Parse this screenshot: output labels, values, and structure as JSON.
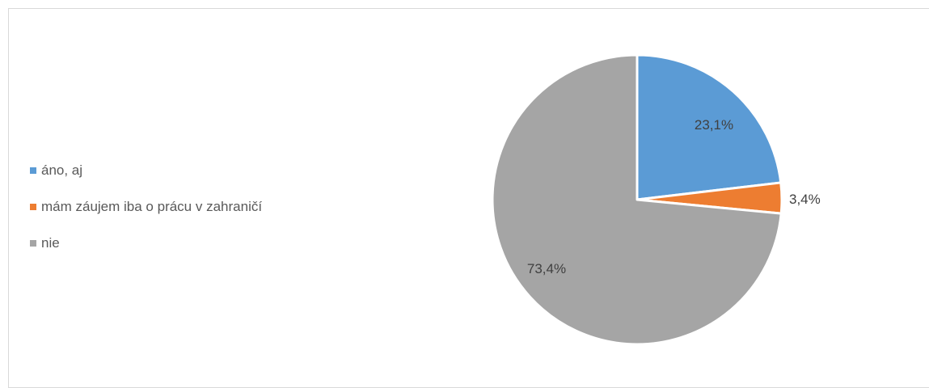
{
  "chart_data": {
    "type": "pie",
    "categories": [
      "áno, aj",
      "mám záujem iba o prácu v zahraničí",
      "nie"
    ],
    "values": [
      23.1,
      3.4,
      73.4
    ],
    "labels": [
      "23,1%",
      "3,4%",
      "73,4%"
    ],
    "colors": [
      "#5B9BD5",
      "#ED7D31",
      "#A5A5A5"
    ],
    "legend_position": "left",
    "title": ""
  },
  "legend": {
    "items": [
      {
        "label": "áno, aj",
        "color": "#5B9BD5"
      },
      {
        "label": "mám záujem iba o prácu v zahraničí",
        "color": "#ED7D31"
      },
      {
        "label": "nie",
        "color": "#A5A5A5"
      }
    ]
  }
}
